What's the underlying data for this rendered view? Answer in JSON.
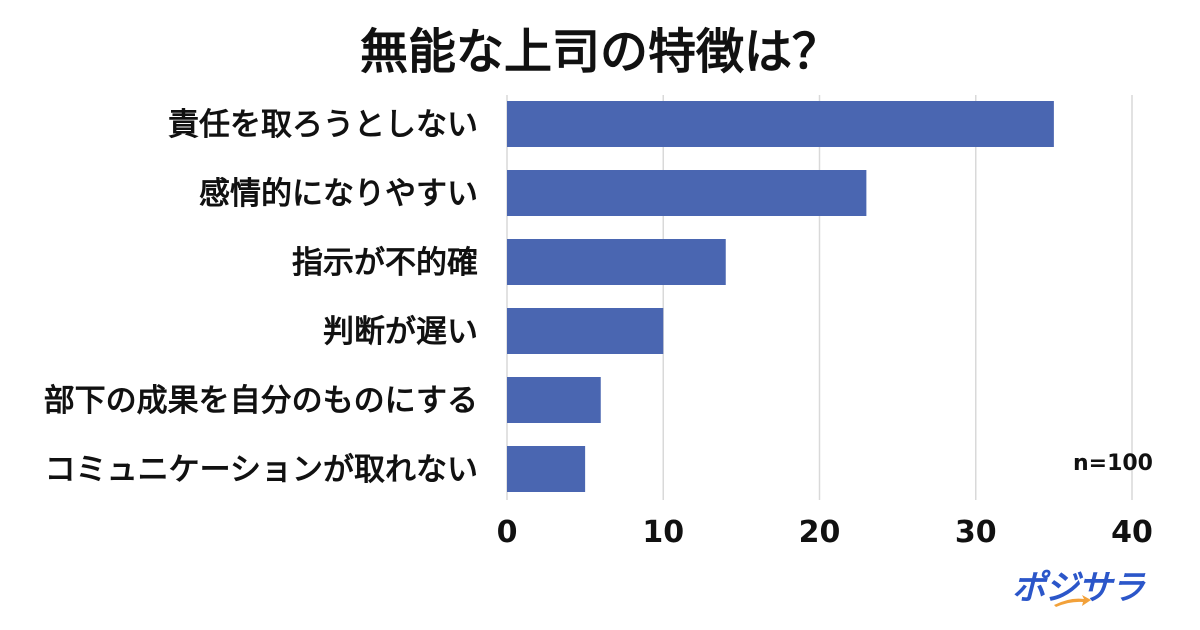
{
  "chart_data": {
    "type": "bar",
    "orientation": "horizontal",
    "title": "無能な上司の特徴は？",
    "categories": [
      "責任を取ろうとしない",
      "感情的になりやすい",
      "指示が不的確",
      "判断が遅い",
      "部下の成果を自分のものにする",
      "コミュニケーションが取れない"
    ],
    "values": [
      35,
      23,
      14,
      10,
      6,
      5
    ],
    "xlim": [
      0,
      40
    ],
    "xticks": [
      0,
      10,
      20,
      30,
      40
    ],
    "grid": true,
    "bar_color": "#4a66b1",
    "annotation": "n=100"
  },
  "brand": {
    "logo_text": "ポジサラ",
    "logo_color": "#2b56c9",
    "arrow_color": "#f2a13a"
  }
}
